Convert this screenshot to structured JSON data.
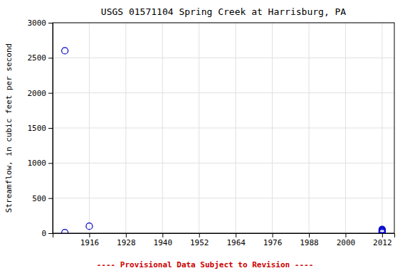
{
  "chart_data": {
    "type": "scatter",
    "title": "USGS 01571104 Spring Creek at Harrisburg, PA",
    "ylabel": "Streamflow, in cubic feet per second",
    "x": [
      1908,
      1908,
      1916,
      2012,
      2012,
      2012,
      2012,
      2012,
      2012
    ],
    "values": [
      2600,
      8,
      100,
      5,
      15,
      25,
      35,
      45,
      55
    ],
    "xlim": [
      1904,
      2016
    ],
    "ylim": [
      0,
      3000
    ],
    "xticks": [
      1916,
      1928,
      1940,
      1952,
      1964,
      1976,
      1988,
      2000,
      2012
    ],
    "yticks": [
      0,
      500,
      1000,
      1500,
      2000,
      2500,
      3000
    ],
    "grid": true,
    "color": "#0000cc",
    "marker": "circle",
    "annotations": [
      {
        "text": "---- Provisional Data Subject to Revision ----",
        "color": "#cc0000"
      }
    ]
  }
}
